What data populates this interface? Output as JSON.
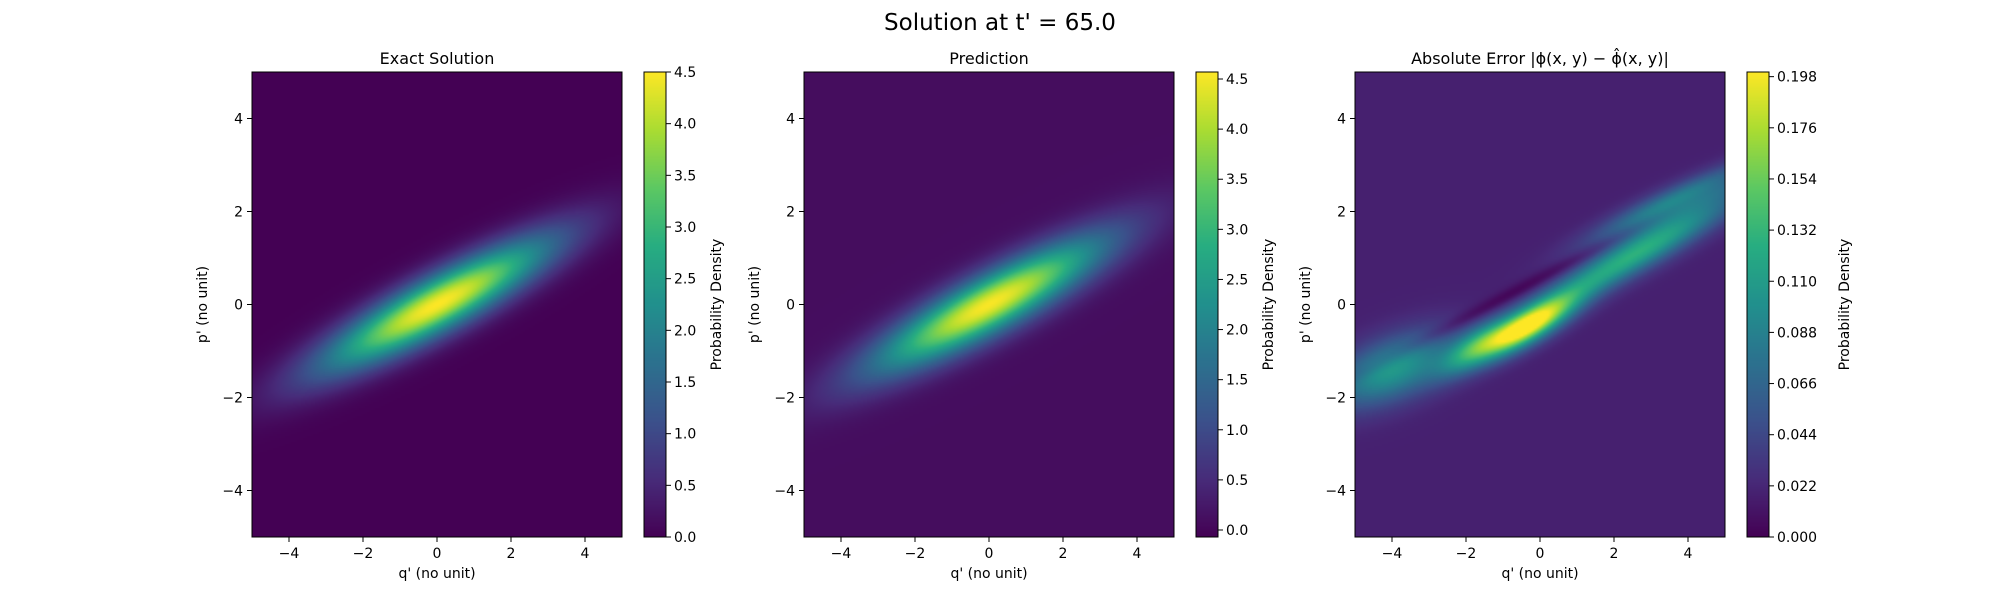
{
  "suptitle": "Solution at t' = 65.0",
  "chart_data": [
    {
      "type": "heatmap",
      "title": "Exact Solution",
      "xlabel": "q' (no unit)",
      "ylabel": "p' (no unit)",
      "xlim": [
        -5,
        5
      ],
      "ylim": [
        -5,
        5
      ],
      "xticks": [
        "−4",
        "−2",
        "0",
        "2",
        "4"
      ],
      "yticks": [
        "−4",
        "−2",
        "0",
        "2",
        "4"
      ],
      "colormap": "viridis",
      "colorbar": {
        "label": "Probability Density",
        "range": [
          0,
          4.5
        ],
        "ticks": [
          "0.0",
          "0.5",
          "1.0",
          "1.5",
          "2.0",
          "2.5",
          "3.0",
          "3.5",
          "4.0",
          "4.5"
        ]
      },
      "field": {
        "kind": "tilted-gaussian",
        "peak": 4.5,
        "center": [
          0,
          0
        ],
        "major_axis_slope": 0.42,
        "sigma_major": 2.3,
        "sigma_minor": 0.42
      }
    },
    {
      "type": "heatmap",
      "title": "Prediction",
      "xlabel": "q' (no unit)",
      "ylabel": "p' (no unit)",
      "xlim": [
        -5,
        5
      ],
      "ylim": [
        -5,
        5
      ],
      "xticks": [
        "−4",
        "−2",
        "0",
        "2",
        "4"
      ],
      "yticks": [
        "−4",
        "−2",
        "0",
        "2",
        "4"
      ],
      "colormap": "viridis",
      "colorbar": {
        "label": "Probability Density",
        "range": [
          -0.07,
          4.57
        ],
        "ticks": [
          "0.0",
          "0.5",
          "1.0",
          "1.5",
          "2.0",
          "2.5",
          "3.0",
          "3.5",
          "4.0",
          "4.5"
        ]
      },
      "field": {
        "kind": "tilted-gaussian",
        "peak": 4.45,
        "center": [
          0,
          0
        ],
        "major_axis_slope": 0.42,
        "sigma_major": 2.3,
        "sigma_minor": 0.43,
        "background": 0.09
      }
    },
    {
      "type": "heatmap",
      "title": "Absolute Error",
      "title_math": "|ϕ(x, y) − ϕ̂(x, y)|",
      "xlabel": "q' (no unit)",
      "ylabel": "p' (no unit)",
      "xlim": [
        -5,
        5
      ],
      "ylim": [
        -5,
        5
      ],
      "xticks": [
        "−4",
        "−2",
        "0",
        "2",
        "4"
      ],
      "yticks": [
        "−4",
        "−2",
        "0",
        "2",
        "4"
      ],
      "colormap": "viridis",
      "colorbar": {
        "label": "Probability Density",
        "range": [
          0,
          0.2
        ],
        "ticks": [
          "0.000",
          "0.022",
          "0.044",
          "0.066",
          "0.088",
          "0.110",
          "0.132",
          "0.154",
          "0.176",
          "0.198"
        ]
      },
      "field": {
        "kind": "error-bands",
        "max": 0.2,
        "background": 0.018
      }
    }
  ]
}
